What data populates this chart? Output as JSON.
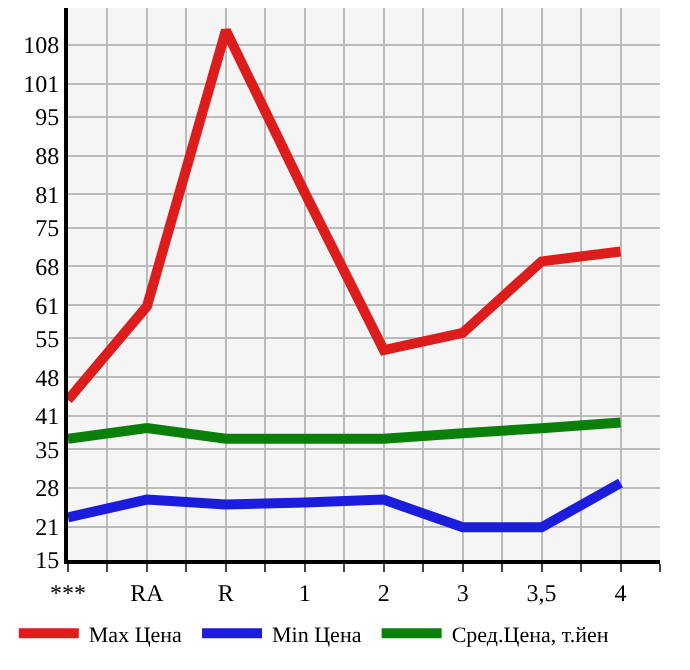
{
  "chart_data": {
    "type": "line",
    "categories": [
      "***",
      "RA",
      "R",
      "1",
      "2",
      "3",
      "3,5",
      "4"
    ],
    "series": [
      {
        "name": "Max Цена",
        "color": "#dd1c1c",
        "values": [
          43.9,
          60.8,
          110.6,
          81.3,
          52.9,
          56.0,
          68.9,
          70.7
        ]
      },
      {
        "name": "Min Цена",
        "color": "#1c1cdd",
        "values": [
          22.7,
          25.9,
          25.0,
          25.4,
          25.9,
          20.9,
          20.9,
          28.9
        ]
      },
      {
        "name": "Сред.Цена, т.йен",
        "color": "#0a800a",
        "values": [
          36.9,
          38.8,
          36.9,
          36.9,
          36.9,
          37.9,
          38.8,
          39.8
        ]
      }
    ],
    "ylim": [
      15,
      114.64
    ],
    "yticks": [
      15,
      21,
      28,
      35,
      41,
      48,
      55,
      61,
      68,
      75,
      81,
      88,
      95,
      101,
      108
    ],
    "grid": true,
    "legend": "bottom",
    "marker": "none",
    "line_style": "solid"
  }
}
